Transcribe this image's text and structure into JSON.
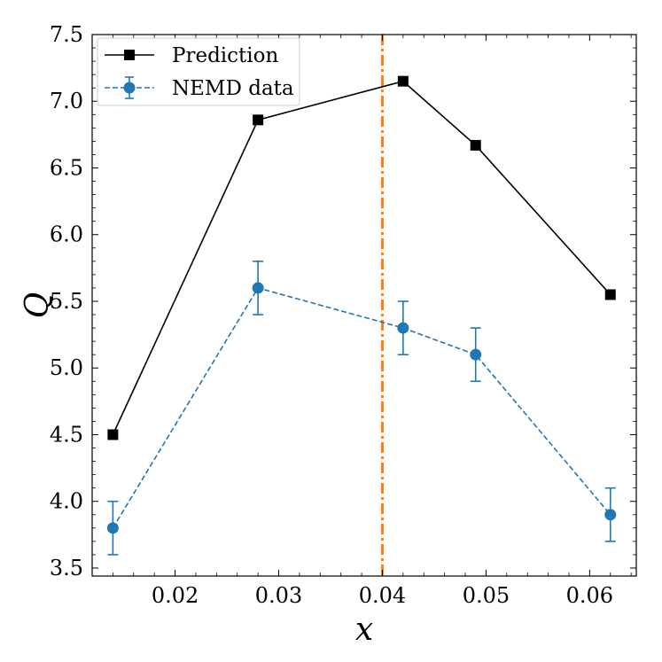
{
  "chart_data": {
    "type": "line",
    "title": "",
    "xlabel": "x",
    "ylabel": "Q",
    "xlim": [
      0.012,
      0.0645
    ],
    "ylim": [
      3.44,
      7.5
    ],
    "xticks": [
      0.02,
      0.03,
      0.04,
      0.05,
      0.06
    ],
    "xtick_labels": [
      "0.02",
      "0.03",
      "0.04",
      "0.05",
      "0.06"
    ],
    "xminor": [
      0.014,
      0.016,
      0.018,
      0.022,
      0.024,
      0.026,
      0.028,
      0.032,
      0.034,
      0.036,
      0.038,
      0.042,
      0.044,
      0.046,
      0.048,
      0.052,
      0.054,
      0.056,
      0.058,
      0.062,
      0.064
    ],
    "yticks": [
      3.5,
      4.0,
      4.5,
      5.0,
      5.5,
      6.0,
      6.5,
      7.0,
      7.5
    ],
    "ytick_labels": [
      "3.5",
      "4.0",
      "4.5",
      "5.0",
      "5.5",
      "6.0",
      "6.5",
      "7.0",
      "7.5"
    ],
    "yminor": [
      3.6,
      3.7,
      3.8,
      3.9,
      4.1,
      4.2,
      4.3,
      4.4,
      4.6,
      4.7,
      4.8,
      4.9,
      5.1,
      5.2,
      5.3,
      5.4,
      5.6,
      5.7,
      5.8,
      5.9,
      6.1,
      6.2,
      6.3,
      6.4,
      6.6,
      6.7,
      6.8,
      6.9,
      7.1,
      7.2,
      7.3,
      7.4
    ],
    "vline": {
      "x": 0.04,
      "color": "#ff7f0e"
    },
    "legend_position": "top-left",
    "series": [
      {
        "name": "Prediction",
        "x": [
          0.014,
          0.028,
          0.042,
          0.049,
          0.062
        ],
        "y": [
          4.5,
          6.86,
          7.15,
          6.67,
          5.55
        ],
        "color": "#000000",
        "marker": "square",
        "linestyle": "solid"
      },
      {
        "name": "NEMD data",
        "x": [
          0.014,
          0.028,
          0.042,
          0.049,
          0.062
        ],
        "y": [
          3.8,
          5.6,
          5.3,
          5.1,
          3.9
        ],
        "yerr": [
          0.2,
          0.2,
          0.2,
          0.2,
          0.2
        ],
        "color": "#1f77b4",
        "marker": "circle",
        "linestyle": "dashed"
      }
    ]
  }
}
